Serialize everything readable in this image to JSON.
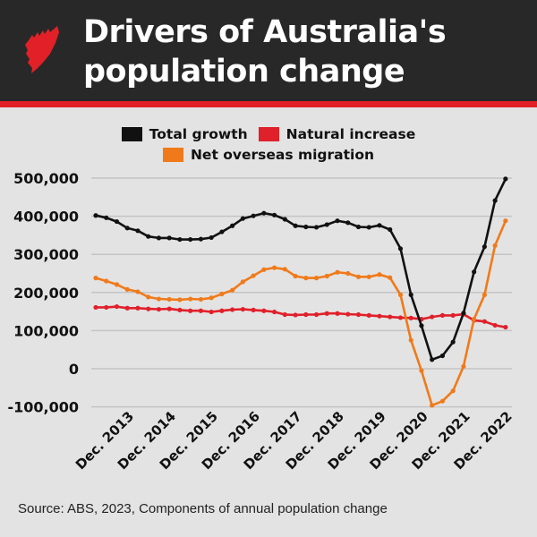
{
  "header": {
    "title_line1": "Drivers of Australia's",
    "title_line2": "population change",
    "logo": "SBS",
    "colors": {
      "background": "#282828",
      "stripe": "#e12127",
      "title": "#ffffff"
    }
  },
  "chart_data": {
    "type": "line",
    "title": "Drivers of Australia's population change",
    "xlabel": "",
    "ylabel": "",
    "x": [
      "Mar. 2013",
      "Jun. 2013",
      "Sep. 2013",
      "Dec. 2013",
      "Mar. 2014",
      "Jun. 2014",
      "Sep. 2014",
      "Dec. 2014",
      "Mar. 2015",
      "Jun. 2015",
      "Sep. 2015",
      "Dec. 2015",
      "Mar. 2016",
      "Jun. 2016",
      "Sep. 2016",
      "Dec. 2016",
      "Mar. 2017",
      "Jun. 2017",
      "Sep. 2017",
      "Dec. 2017",
      "Mar. 2018",
      "Jun. 2018",
      "Sep. 2018",
      "Dec. 2018",
      "Mar. 2019",
      "Jun. 2019",
      "Sep. 2019",
      "Dec. 2019",
      "Mar. 2020",
      "Jun. 2020",
      "Sep. 2020",
      "Dec. 2020",
      "Mar. 2021",
      "Jun. 2021",
      "Sep. 2021",
      "Dec. 2021",
      "Mar. 2022",
      "Jun. 2022",
      "Sep. 2022",
      "Dec. 2022"
    ],
    "x_tick_labels": [
      "Dec. 2013",
      "Dec. 2014",
      "Dec. 2015",
      "Dec. 2016",
      "Dec. 2017",
      "Dec. 2018",
      "Dec. 2019",
      "Dec. 2020",
      "Dec. 2021",
      "Dec. 2022"
    ],
    "y_tick_labels": [
      "-100,000",
      "0",
      "100,000",
      "200,000",
      "300,000",
      "400,000",
      "500,000"
    ],
    "y_ticks": [
      -100000,
      0,
      100000,
      200000,
      300000,
      400000,
      500000
    ],
    "ylim": [
      -100000,
      500000
    ],
    "grid": true,
    "legend_position": "top",
    "series": [
      {
        "name": "Total growth",
        "color": "#111111",
        "values": [
          402000,
          396000,
          386000,
          369000,
          362000,
          347000,
          343000,
          343000,
          339000,
          339000,
          340000,
          344000,
          359000,
          375000,
          394000,
          401000,
          408000,
          403000,
          392000,
          375000,
          372000,
          371000,
          378000,
          388000,
          383000,
          372000,
          371000,
          376000,
          365000,
          315000,
          194000,
          113000,
          24000,
          34000,
          70000,
          146000,
          254000,
          320000,
          441000,
          498000
        ]
      },
      {
        "name": "Natural increase",
        "color": "#e0202a",
        "values": [
          161000,
          161000,
          163000,
          159000,
          159000,
          157000,
          156000,
          157000,
          154000,
          152000,
          152000,
          149000,
          152000,
          155000,
          156000,
          154000,
          152000,
          149000,
          142000,
          141000,
          142000,
          142000,
          145000,
          145000,
          143000,
          142000,
          140000,
          138000,
          136000,
          134000,
          133000,
          130000,
          136000,
          140000,
          140000,
          143000,
          127000,
          124000,
          114000,
          109000
        ]
      },
      {
        "name": "Net overseas migration",
        "color": "#f07a1a",
        "values": [
          238000,
          230000,
          221000,
          208000,
          202000,
          188000,
          183000,
          182000,
          181000,
          183000,
          182000,
          186000,
          196000,
          206000,
          228000,
          244000,
          260000,
          265000,
          261000,
          243000,
          238000,
          238000,
          243000,
          253000,
          250000,
          241000,
          241000,
          247000,
          239000,
          194000,
          75000,
          -5000,
          -96000,
          -85000,
          -58000,
          6000,
          130000,
          194000,
          323000,
          388000
        ]
      }
    ]
  },
  "source": "Source: ABS, 2023, Components of annual population change"
}
